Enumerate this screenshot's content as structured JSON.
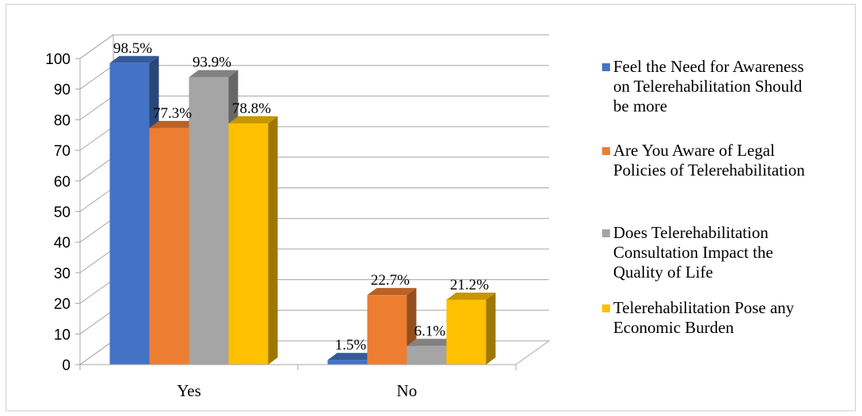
{
  "chart_data": {
    "type": "bar",
    "categories": [
      "Yes",
      "No"
    ],
    "series": [
      {
        "name": "Feel the Need for Awareness on Telerehabilitation Should be more",
        "values": [
          98.5,
          1.5
        ],
        "labels": [
          "98.5%",
          "1.5%"
        ],
        "color": "#4472C4"
      },
      {
        "name": "Are You Aware of Legal Policies of Telerehabilitation",
        "values": [
          77.3,
          22.7
        ],
        "labels": [
          "77.3%",
          "22.7%"
        ],
        "color": "#ED7D31"
      },
      {
        "name": "Does Telerehabilitation Consultation Impact the Quality of Life",
        "values": [
          93.9,
          6.1
        ],
        "labels": [
          "93.9%",
          "6.1%"
        ],
        "color": "#A5A5A5"
      },
      {
        "name": "Telerehabilitation Pose any Economic Burden",
        "values": [
          78.8,
          21.2
        ],
        "labels": [
          "78.8%",
          "21.2%"
        ],
        "color": "#FFC000"
      }
    ],
    "yticks": [
      "0",
      "10",
      "20",
      "30",
      "40",
      "50",
      "60",
      "70",
      "80",
      "90",
      "100"
    ],
    "ylim": [
      0,
      100
    ],
    "grid": true,
    "legend": "right"
  },
  "legend": {
    "items": [
      {
        "text": "Feel the Need for Awareness\non Telerehabilitation Should\nbe more",
        "color": "#4472C4"
      },
      {
        "text": "Are You Aware of Legal\nPolicies of Telerehabilitation",
        "color": "#ED7D31"
      },
      {
        "text": "Does Telerehabilitation\nConsultation Impact the\nQuality of Life",
        "color": "#A5A5A5"
      },
      {
        "text": "Telerehabilitation Pose any\nEconomic Burden",
        "color": "#FFC000"
      }
    ]
  }
}
